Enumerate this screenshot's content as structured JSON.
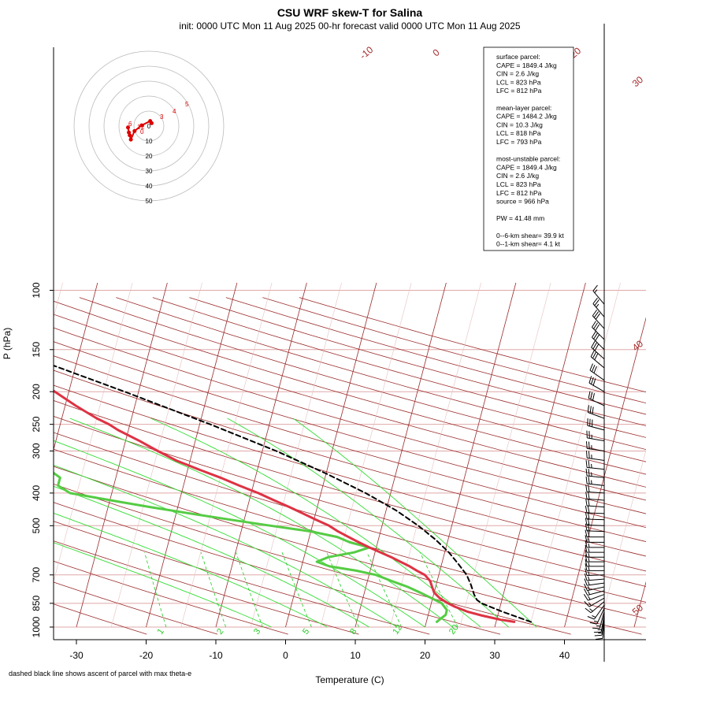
{
  "header": {
    "title": "CSU WRF skew-T for Salina",
    "subtitle": "init: 0000 UTC Mon 11 Aug 2025     00-hr forecast valid 0000 UTC Mon 11 Aug 2025"
  },
  "footnote": "dashed black line shows ascent of parcel with max theta-e",
  "colors": {
    "temperature": "#dd3344",
    "dewpoint": "#55cc44",
    "isotherm": "#a52a2a",
    "mixing_ratio": "#22cc22",
    "parcel": "#000000",
    "hodograph": "#dd0000"
  },
  "chart_data": {
    "type": "line",
    "chart_kind": "skew-T log-P",
    "xlabel": "Temperature (C)",
    "ylabel": "P (hPa)",
    "x_ticks": [
      "-30",
      "-20",
      "-10",
      "0",
      "10",
      "20",
      "30",
      "40"
    ],
    "y_ticks": [
      "100",
      "150",
      "200",
      "250",
      "300",
      "400",
      "500",
      "700",
      "850",
      "1000"
    ],
    "isotherm_labels": [
      "-10",
      "0",
      "10",
      "20",
      "30",
      "40",
      "50"
    ],
    "mixing_ratio_labels": [
      "1",
      "2",
      "3",
      "5",
      "8",
      "12",
      "20"
    ],
    "series": [
      {
        "pressure": [
          965,
          950,
          925,
          900,
          870,
          850,
          820,
          790,
          760,
          730,
          700,
          680,
          660,
          640,
          620,
          600,
          580,
          560,
          540,
          520,
          500,
          480,
          460,
          440,
          420,
          400,
          380,
          360,
          340,
          320,
          300,
          280,
          260,
          250,
          240,
          220,
          200,
          180,
          165,
          155,
          150,
          140,
          130,
          120,
          110,
          105
        ],
        "values": [
          32.6,
          30.5,
          27.8,
          25.5,
          23.5,
          22.4,
          21.0,
          20.0,
          19.5,
          19.0,
          18.0,
          16.7,
          15.5,
          14.0,
          12.5,
          10.8,
          9.0,
          7.3,
          5.6,
          3.9,
          2.4,
          0.3,
          -1.8,
          -4.0,
          -6.5,
          -9.0,
          -12.0,
          -15.0,
          -18.5,
          -22.0,
          -25.0,
          -28.0,
          -31.5,
          -33.0,
          -35.0,
          -38.5,
          -42.0,
          -46.0,
          -49.5,
          -52.0,
          -53.0,
          -53.5,
          -54.0,
          -54.2,
          -54.5,
          -54.8
        ]
      },
      {
        "pressure": [
          965,
          950,
          920,
          890,
          850,
          820,
          790,
          760,
          730,
          700,
          680,
          660,
          640,
          620,
          600,
          580,
          560,
          540,
          520,
          500,
          480,
          460,
          440,
          420,
          400,
          380,
          360,
          340,
          320,
          300,
          280,
          260,
          250,
          240,
          220,
          200,
          180,
          160,
          140,
          125,
          115,
          108,
          105
        ],
        "values": [
          21.5,
          21.8,
          22.5,
          22.5,
          21.5,
          19.8,
          18.0,
          16.0,
          13.5,
          11.0,
          8.0,
          4.0,
          2.0,
          3.5,
          7.0,
          9.0,
          6.0,
          4.0,
          0.0,
          -6.0,
          -12.0,
          -18.0,
          -24.0,
          -30.0,
          -36.0,
          -38.0,
          -38.0,
          -40.0,
          -44.0,
          -48.0,
          -53.0,
          -58.0,
          -60.0,
          -62.0,
          -66.0,
          -70.0,
          -74.0,
          -78.0,
          -82.0,
          -86.0,
          -88.0,
          -90.0,
          -92.0
        ]
      },
      {
        "pressure": [
          965,
          900,
          850,
          830,
          800,
          750,
          700,
          650,
          600,
          550,
          500,
          450,
          400,
          350,
          300,
          250,
          200,
          150,
          130
        ],
        "values": [
          35.0,
          30.5,
          27.2,
          26.4,
          25.8,
          25.0,
          24.0,
          22.4,
          20.6,
          18.2,
          15.2,
          11.4,
          6.4,
          0.0,
          -8.0,
          -18.5,
          -32.0,
          -50.0,
          -60.0
        ]
      }
    ],
    "hodograph": {
      "ring_labels": [
        "10",
        "20",
        "30",
        "40",
        "50"
      ],
      "center_label": "0",
      "point_labels": [
        "6",
        "5",
        "4",
        "3",
        "2",
        "1",
        "0"
      ],
      "u": [
        -1.8,
        -1.5,
        -1.2,
        -0.8,
        0.5,
        3.0,
        6.0,
        6.5
      ],
      "v": [
        -1.0,
        -4.5,
        -6.5,
        -9.5,
        -3.5,
        0.5,
        3.5,
        2.0
      ]
    },
    "wind_barbs": {
      "pressure": [
        960,
        940,
        920,
        900,
        880,
        860,
        840,
        820,
        800,
        780,
        760,
        740,
        720,
        700,
        680,
        660,
        640,
        620,
        600,
        580,
        560,
        540,
        520,
        500,
        480,
        460,
        440,
        420,
        400,
        380,
        360,
        340,
        320,
        300,
        280,
        260,
        240,
        220,
        200,
        185,
        170,
        160,
        150,
        140,
        130,
        120,
        110
      ],
      "speed_kt": [
        10,
        15,
        15,
        15,
        15,
        15,
        15,
        15,
        15,
        15,
        15,
        15,
        15,
        15,
        15,
        15,
        15,
        15,
        15,
        15,
        15,
        20,
        20,
        20,
        20,
        20,
        20,
        20,
        20,
        25,
        25,
        25,
        25,
        25,
        25,
        30,
        30,
        30,
        30,
        30,
        30,
        30,
        30,
        30,
        30,
        25,
        15
      ],
      "direction_deg": [
        185,
        188,
        190,
        195,
        205,
        215,
        230,
        240,
        250,
        255,
        258,
        262,
        265,
        268,
        270,
        270,
        270,
        270,
        270,
        270,
        270,
        270,
        272,
        272,
        272,
        272,
        274,
        274,
        274,
        276,
        276,
        276,
        278,
        278,
        280,
        285,
        290,
        295,
        300,
        305,
        310,
        312,
        315,
        315,
        318,
        320,
        320
      ]
    }
  },
  "info_box": {
    "lines": [
      "surface parcel:",
      "CAPE = 1849.4 J/kg",
      "CIN = 2.6 J/kg",
      "LCL = 823 hPa",
      "LFC = 812 hPa",
      "",
      "mean-layer parcel:",
      "CAPE = 1484.2 J/kg",
      "CIN = 10.3 J/kg",
      "LCL = 818 hPa",
      "LFC = 793 hPa",
      "",
      "most-unstable parcel:",
      "CAPE = 1849.4 J/kg",
      "CIN = 2.6 J/kg",
      "LCL = 823 hPa",
      "LFC = 812 hPa",
      "source = 966 hPa",
      "",
      "PW =  41.48 mm",
      "",
      "0--6-km shear= 39.9 kt",
      "0--1-km shear= 4.1 kt"
    ]
  }
}
